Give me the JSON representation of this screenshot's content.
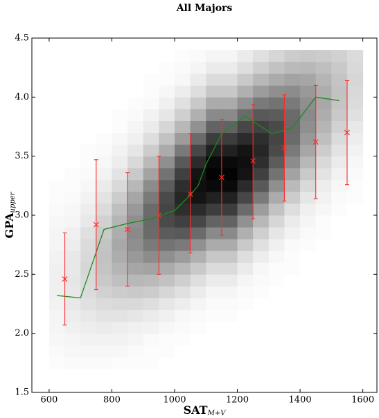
{
  "chart_data": {
    "type": "composite",
    "title": "All Majors",
    "x_label": {
      "text": "SAT",
      "subscript": "M+V"
    },
    "y_label": {
      "text": "GPA",
      "subscript": "upper"
    },
    "xlim": [
      545,
      1645
    ],
    "ylim": [
      1.5,
      4.5
    ],
    "xticks": [
      600,
      800,
      1000,
      1200,
      1400,
      1600
    ],
    "yticks": [
      1.5,
      {
        "value": 2,
        "label": "2.0"
      },
      2.5,
      {
        "value": 3,
        "label": "3.0"
      },
      3.5,
      {
        "value": 4,
        "label": "4.0"
      },
      4.5
    ],
    "layers": [
      {
        "type": "heatmap",
        "xbins": [
          600,
          650,
          700,
          750,
          800,
          850,
          900,
          950,
          1000,
          1050,
          1100,
          1150,
          1200,
          1250,
          1300,
          1350,
          1400,
          1450,
          1500,
          1550,
          1600
        ],
        "ybins": [
          1.7,
          1.8,
          1.9,
          2.0,
          2.1,
          2.2,
          2.3,
          2.4,
          2.5,
          2.6,
          2.7,
          2.8,
          2.9,
          3.0,
          3.1,
          3.2,
          3.3,
          3.4,
          3.5,
          3.6,
          3.7,
          3.8,
          3.9,
          4.0,
          4.1,
          4.2,
          4.3,
          4.4
        ],
        "z": [
          [
            1,
            2,
            2,
            2,
            1,
            1,
            1,
            0,
            0,
            0,
            0,
            0,
            0,
            0,
            0,
            0,
            0,
            0,
            0,
            0
          ],
          [
            2,
            3,
            3,
            3,
            3,
            2,
            1,
            1,
            0,
            0,
            0,
            0,
            0,
            0,
            0,
            0,
            0,
            0,
            0,
            0
          ],
          [
            3,
            4,
            5,
            5,
            5,
            4,
            2,
            1,
            1,
            0,
            0,
            0,
            0,
            0,
            0,
            0,
            0,
            0,
            0,
            0
          ],
          [
            4,
            6,
            7,
            8,
            7,
            6,
            5,
            3,
            2,
            1,
            0,
            0,
            0,
            0,
            0,
            0,
            0,
            0,
            0,
            0
          ],
          [
            4,
            7,
            9,
            11,
            11,
            10,
            8,
            6,
            3,
            2,
            1,
            1,
            0,
            0,
            0,
            0,
            0,
            0,
            0,
            0
          ],
          [
            5,
            9,
            12,
            14,
            15,
            15,
            13,
            10,
            7,
            4,
            2,
            2,
            1,
            0,
            0,
            0,
            0,
            0,
            0,
            0
          ],
          [
            6,
            9,
            14,
            18,
            20,
            21,
            20,
            16,
            12,
            8,
            4,
            4,
            2,
            1,
            0,
            0,
            0,
            0,
            0,
            0
          ],
          [
            6,
            10,
            15,
            21,
            25,
            28,
            27,
            24,
            19,
            13,
            8,
            8,
            4,
            2,
            1,
            0,
            0,
            0,
            0,
            0
          ],
          [
            6,
            9,
            16,
            23,
            29,
            35,
            36,
            33,
            28,
            21,
            14,
            14,
            8,
            3,
            1,
            1,
            0,
            0,
            0,
            0
          ],
          [
            5,
            9,
            15,
            24,
            32,
            40,
            45,
            44,
            39,
            31,
            22,
            22,
            13,
            7,
            3,
            1,
            0,
            0,
            0,
            0
          ],
          [
            4,
            7,
            14,
            23,
            34,
            44,
            52,
            55,
            52,
            43,
            33,
            33,
            21,
            12,
            6,
            2,
            1,
            0,
            0,
            0
          ],
          [
            4,
            6,
            12,
            21,
            32,
            46,
            58,
            64,
            65,
            58,
            46,
            46,
            31,
            19,
            10,
            5,
            2,
            1,
            0,
            0
          ],
          [
            3,
            4,
            9,
            18,
            29,
            44,
            59,
            71,
            75,
            72,
            61,
            61,
            43,
            28,
            16,
            8,
            4,
            1,
            0,
            0
          ],
          [
            2,
            3,
            7,
            14,
            25,
            40,
            58,
            73,
            82,
            83,
            76,
            76,
            58,
            39,
            24,
            13,
            6,
            3,
            1,
            0
          ],
          [
            1,
            2,
            5,
            11,
            20,
            35,
            52,
            71,
            85,
            92,
            87,
            87,
            72,
            52,
            33,
            20,
            10,
            5,
            2,
            1
          ],
          [
            1,
            1,
            3,
            8,
            15,
            28,
            45,
            64,
            82,
            94,
            96,
            96,
            83,
            65,
            44,
            27,
            15,
            7,
            3,
            1
          ],
          [
            0,
            1,
            2,
            5,
            11,
            21,
            36,
            55,
            75,
            92,
            99,
            99,
            92,
            75,
            55,
            36,
            21,
            11,
            5,
            2
          ],
          [
            0,
            0,
            1,
            3,
            7,
            15,
            27,
            44,
            65,
            83,
            96,
            96,
            94,
            82,
            64,
            45,
            28,
            15,
            8,
            3
          ],
          [
            0,
            0,
            1,
            2,
            5,
            10,
            20,
            33,
            52,
            72,
            87,
            87,
            92,
            85,
            71,
            52,
            35,
            20,
            11,
            5
          ],
          [
            0,
            0,
            0,
            1,
            3,
            6,
            13,
            24,
            39,
            58,
            76,
            76,
            83,
            82,
            73,
            58,
            40,
            25,
            14,
            7
          ],
          [
            0,
            0,
            0,
            0,
            1,
            4,
            8,
            16,
            28,
            43,
            61,
            61,
            72,
            75,
            71,
            59,
            44,
            29,
            18,
            9
          ],
          [
            0,
            0,
            0,
            0,
            1,
            2,
            5,
            10,
            19,
            31,
            46,
            46,
            58,
            65,
            64,
            58,
            46,
            32,
            21,
            12
          ],
          [
            0,
            0,
            0,
            0,
            0,
            1,
            2,
            6,
            12,
            21,
            33,
            33,
            43,
            52,
            55,
            52,
            44,
            34,
            23,
            14
          ],
          [
            0,
            0,
            0,
            0,
            0,
            0,
            1,
            3,
            7,
            13,
            22,
            22,
            31,
            39,
            44,
            45,
            40,
            32,
            24,
            15
          ],
          [
            0,
            0,
            0,
            0,
            0,
            0,
            1,
            1,
            3,
            8,
            14,
            14,
            21,
            28,
            33,
            36,
            35,
            29,
            23,
            16
          ],
          [
            0,
            0,
            0,
            0,
            0,
            0,
            0,
            1,
            2,
            4,
            8,
            8,
            13,
            19,
            24,
            27,
            28,
            25,
            21,
            15
          ],
          [
            0,
            0,
            0,
            0,
            0,
            0,
            0,
            0,
            1,
            2,
            4,
            4,
            8,
            12,
            16,
            20,
            21,
            20,
            18,
            14
          ]
        ]
      },
      {
        "type": "line",
        "color": "#1a8c1a",
        "x": [
          625,
          700,
          775,
          850,
          925,
          1000,
          1050,
          1075,
          1100,
          1150,
          1225,
          1310,
          1375,
          1450,
          1525
        ],
        "y": [
          2.32,
          2.3,
          2.88,
          2.93,
          2.97,
          3.04,
          3.17,
          3.25,
          3.43,
          3.69,
          3.84,
          3.69,
          3.74,
          4.0,
          3.97
        ]
      },
      {
        "type": "errorbar",
        "color": "#ff2a2a",
        "x": [
          650,
          750,
          850,
          950,
          1050,
          1150,
          1250,
          1350,
          1450,
          1550
        ],
        "y": [
          2.46,
          2.92,
          2.88,
          3.0,
          3.18,
          3.32,
          3.46,
          3.57,
          3.62,
          3.7
        ],
        "lower": [
          2.07,
          2.37,
          2.4,
          2.5,
          2.68,
          2.83,
          2.97,
          3.12,
          3.14,
          3.26
        ],
        "upper": [
          2.85,
          3.47,
          3.36,
          3.5,
          3.69,
          3.81,
          3.94,
          4.02,
          4.1,
          4.14
        ]
      }
    ]
  }
}
